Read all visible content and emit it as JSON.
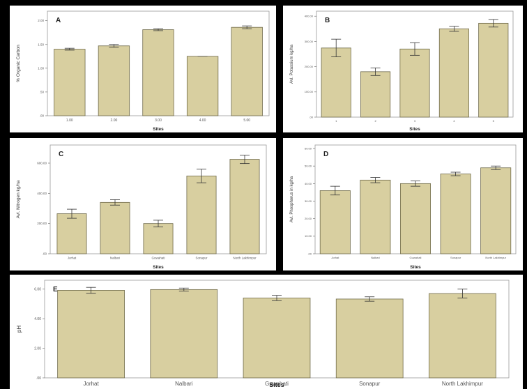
{
  "colors": {
    "bar_fill": "#d8cfa0",
    "bar_stroke": "#6f6a4a",
    "plot_bg": "#ffffff",
    "error": "#333333"
  },
  "chart_data": [
    {
      "panel": "A",
      "type": "bar",
      "categories": [
        "1.00",
        "2.00",
        "3.00",
        "4.00",
        "5.00"
      ],
      "values": [
        1.4,
        1.47,
        1.81,
        1.25,
        1.86
      ],
      "errors": [
        0.02,
        0.03,
        0.02,
        0.0,
        0.03
      ],
      "xlabel": "Sites",
      "ylabel": "% Organic Carbon",
      "ylim": [
        0,
        2.2
      ],
      "yticks": [
        0,
        0.5,
        1.0,
        1.5,
        2.0
      ],
      "yticklabels": [
        ".00",
        ".50",
        "1.00",
        "1.50",
        "2.00"
      ]
    },
    {
      "panel": "B",
      "type": "bar",
      "categories": [
        "1",
        "2",
        "3",
        "4",
        "5"
      ],
      "values": [
        274,
        180,
        270,
        350,
        372
      ],
      "errors": [
        35,
        15,
        25,
        10,
        15
      ],
      "xlabel": "Sites",
      "ylabel": "Avl. Potassium kg/ha",
      "ylim": [
        0,
        420
      ],
      "yticks": [
        0,
        100,
        200,
        300,
        400
      ],
      "yticklabels": [
        ".00",
        "100.00",
        "200.00",
        "300.00",
        "400.00"
      ]
    },
    {
      "panel": "C",
      "type": "bar",
      "categories": [
        "Jorhat",
        "Nalbari",
        "Guwahati",
        "Sonapur",
        "North Lakhimpur"
      ],
      "values": [
        265,
        340,
        200,
        515,
        625
      ],
      "errors": [
        30,
        18,
        22,
        45,
        28
      ],
      "xlabel": "Sites",
      "ylabel": "Avl. Nitrogen kg/ha",
      "ylim": [
        0,
        720
      ],
      "yticks": [
        0,
        200,
        400,
        600
      ],
      "yticklabels": [
        ".00",
        "200.00",
        "400.00",
        "600.00"
      ]
    },
    {
      "panel": "D",
      "type": "bar",
      "categories": [
        "Jorhat",
        "Nalbari",
        "Guwahati",
        "Sonapur",
        "North Lakhimpur"
      ],
      "values": [
        36,
        42,
        40,
        45.5,
        49
      ],
      "errors": [
        2.5,
        1.5,
        1.5,
        1,
        1
      ],
      "xlabel": "Sites",
      "ylabel": "Avl. Phosphorus in kg/ha",
      "ylim": [
        0,
        62
      ],
      "yticks": [
        0,
        10,
        20,
        30,
        40,
        50,
        60
      ],
      "yticklabels": [
        ".00",
        "10.00",
        "20.00",
        "30.00",
        "40.00",
        "50.00",
        "60.00"
      ]
    },
    {
      "panel": "E",
      "type": "bar",
      "categories": [
        "Jorhat",
        "Nalbari",
        "Guwahati",
        "Sonapur",
        "North Lakhimpur"
      ],
      "values": [
        5.92,
        5.97,
        5.4,
        5.33,
        5.7
      ],
      "errors": [
        0.2,
        0.1,
        0.18,
        0.15,
        0.3
      ],
      "xlabel": "Sites",
      "ylabel": "pH",
      "ylim": [
        0,
        6.6
      ],
      "yticks": [
        0,
        2,
        4,
        6
      ],
      "yticklabels": [
        ".00",
        "2.00",
        "4.00",
        "6.00"
      ]
    }
  ]
}
